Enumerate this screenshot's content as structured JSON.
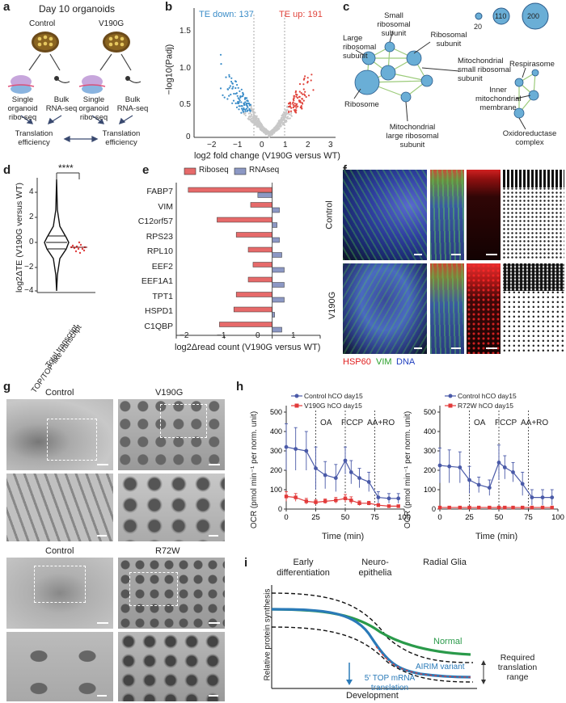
{
  "panel_labels": {
    "a": "a",
    "b": "b",
    "c": "c",
    "d": "d",
    "e": "e",
    "f": "f",
    "g": "g",
    "h": "h",
    "i": "i"
  },
  "panel_a": {
    "title": "Day 10 organoids",
    "control": "Control",
    "mutant": "V190G",
    "riboseq": "Single organoid ribo-seq",
    "rnaseq": "Bulk RNA-seq",
    "te": "Translation efficiency"
  },
  "panel_b": {
    "down_label": "TE down: 137",
    "up_label": "TE up: 191",
    "down_color": "#3a8cc8",
    "up_color": "#e0443c",
    "xlabel": "log2 fold change (V190G versus WT)",
    "ylabel": "−log10(Padj)",
    "xticks": [
      "−2",
      "−1",
      "0",
      "1",
      "2",
      "3"
    ],
    "yticks": [
      "0",
      "0.5",
      "1.0",
      "1.5"
    ]
  },
  "panel_c": {
    "legend_sizes": [
      "20",
      "110",
      "200"
    ],
    "nodes": [
      "Small ribosomal subunit",
      "Ribosomal subunit",
      "Large ribosomal subunit",
      "Mitochondrial small ribosomal subunit",
      "Ribosome",
      "Mitochondrial large ribosomal subunit",
      "Respirasome",
      "Inner mitochondrial membrane",
      "Oxidoreductase complex"
    ]
  },
  "panel_d": {
    "ylabel": "log2ΔTE (V190G versus WT)",
    "sig": "****",
    "xcats": [
      "Total transcript",
      "TOP/TOP-like transcript"
    ],
    "yticks": [
      "4",
      "2",
      "0",
      "−2",
      "−4"
    ]
  },
  "chart_data": [
    {
      "type": "bar",
      "title": "",
      "legend": [
        "Riboseq",
        "RNAseq"
      ],
      "colors": {
        "Riboseq": "#e66a6a",
        "RNAseq": "#8c98c4"
      },
      "categories": [
        "FABP7",
        "VIM",
        "C12orf57",
        "RPS23",
        "RPL10",
        "EEF2",
        "EEF1A1",
        "TPT1",
        "HSPD1",
        "C1QBP"
      ],
      "series": [
        {
          "name": "Riboseq",
          "values": [
            -1.75,
            -0.45,
            -1.15,
            -0.75,
            -0.5,
            -0.4,
            -0.5,
            -0.75,
            -0.8,
            -1.1
          ]
        },
        {
          "name": "RNAseq",
          "values": [
            -0.3,
            0.15,
            0.1,
            0.15,
            0.2,
            0.25,
            0.25,
            0.25,
            0.05,
            0.2
          ]
        }
      ],
      "xlabel": "log2Δread count (V190G versus WT)",
      "xticks": [
        "−2",
        "−1",
        "0",
        "1"
      ],
      "xlim": [
        -2,
        1
      ]
    },
    {
      "type": "line",
      "title": "",
      "legend": [
        "Control hCO day15",
        "V190G hCO day15"
      ],
      "colors": [
        "#4a5aa8",
        "#e23a3a"
      ],
      "x": [
        0,
        8,
        17,
        25,
        33,
        42,
        50,
        55,
        62,
        70,
        78,
        87,
        95
      ],
      "series": [
        {
          "name": "Control hCO day15",
          "values": [
            320,
            310,
            300,
            210,
            175,
            160,
            250,
            190,
            160,
            140,
            60,
            55,
            55
          ],
          "errors": [
            120,
            110,
            100,
            110,
            70,
            70,
            70,
            60,
            50,
            50,
            30,
            25,
            25
          ]
        },
        {
          "name": "V190G hCO day15",
          "values": [
            65,
            60,
            40,
            35,
            40,
            45,
            55,
            45,
            30,
            30,
            20,
            15,
            15
          ],
          "errors": [
            25,
            20,
            15,
            12,
            12,
            15,
            20,
            18,
            12,
            10,
            8,
            5,
            5
          ]
        }
      ],
      "annotations": [
        "OA",
        "FCCP",
        "AA+RO"
      ],
      "xlabel": "Time (min)",
      "ylabel": "OCR (pmol min⁻¹ per norm. unit)",
      "xticks": [
        "0",
        "25",
        "50",
        "75",
        "100"
      ],
      "yticks": [
        "0",
        "100",
        "200",
        "300",
        "400",
        "500"
      ],
      "ylim": [
        0,
        500
      ]
    },
    {
      "type": "line",
      "title": "",
      "legend": [
        "Control hCO day15",
        "R72W hCO day15"
      ],
      "colors": [
        "#4a5aa8",
        "#e23a3a"
      ],
      "x": [
        0,
        8,
        17,
        25,
        33,
        42,
        50,
        55,
        62,
        70,
        78,
        87,
        95
      ],
      "series": [
        {
          "name": "Control hCO day15",
          "values": [
            225,
            220,
            215,
            150,
            125,
            110,
            240,
            215,
            190,
            130,
            60,
            60,
            60
          ],
          "errors": [
            90,
            85,
            80,
            70,
            40,
            40,
            90,
            60,
            50,
            60,
            40,
            40,
            40
          ]
        },
        {
          "name": "R72W hCO day15",
          "values": [
            8,
            8,
            8,
            8,
            8,
            8,
            8,
            8,
            8,
            8,
            8,
            8,
            8
          ],
          "errors": [
            3,
            3,
            3,
            3,
            3,
            3,
            3,
            3,
            3,
            3,
            3,
            3,
            3
          ]
        }
      ],
      "annotations": [
        "OA",
        "FCCP",
        "AA+RO"
      ],
      "xlabel": "Time (min)",
      "ylabel": "OCR (pmol min⁻¹ per norm. unit)",
      "xticks": [
        "0",
        "25",
        "50",
        "75",
        "100"
      ],
      "yticks": [
        "0",
        "100",
        "200",
        "300",
        "400",
        "500"
      ],
      "ylim": [
        0,
        500
      ]
    }
  ],
  "panel_f": {
    "row1": "Control",
    "row2": "V190G",
    "stain_hsp60": "HSP60",
    "stain_vim": "VIM",
    "stain_dna": "DNA",
    "hsp_color": "#e02020",
    "vim_color": "#2aa02a",
    "dna_color": "#2040c0"
  },
  "panel_g": {
    "control1": "Control",
    "v190g": "V190G",
    "control2": "Control",
    "r72w": "R72W"
  },
  "panel_i": {
    "stage1": "Early differentiation",
    "stage2": "Neuro-epithelia",
    "stage3": "Radial Glia",
    "ylabel": "Relative protein synthesis",
    "xlabel": "Development",
    "normal": "Normal",
    "variant": "AIRIM variant",
    "range": "Required translation range",
    "top": "5′ TOP mRNA translation",
    "normal_color": "#2a9a4a",
    "variant_color": "#2a7ab8"
  }
}
